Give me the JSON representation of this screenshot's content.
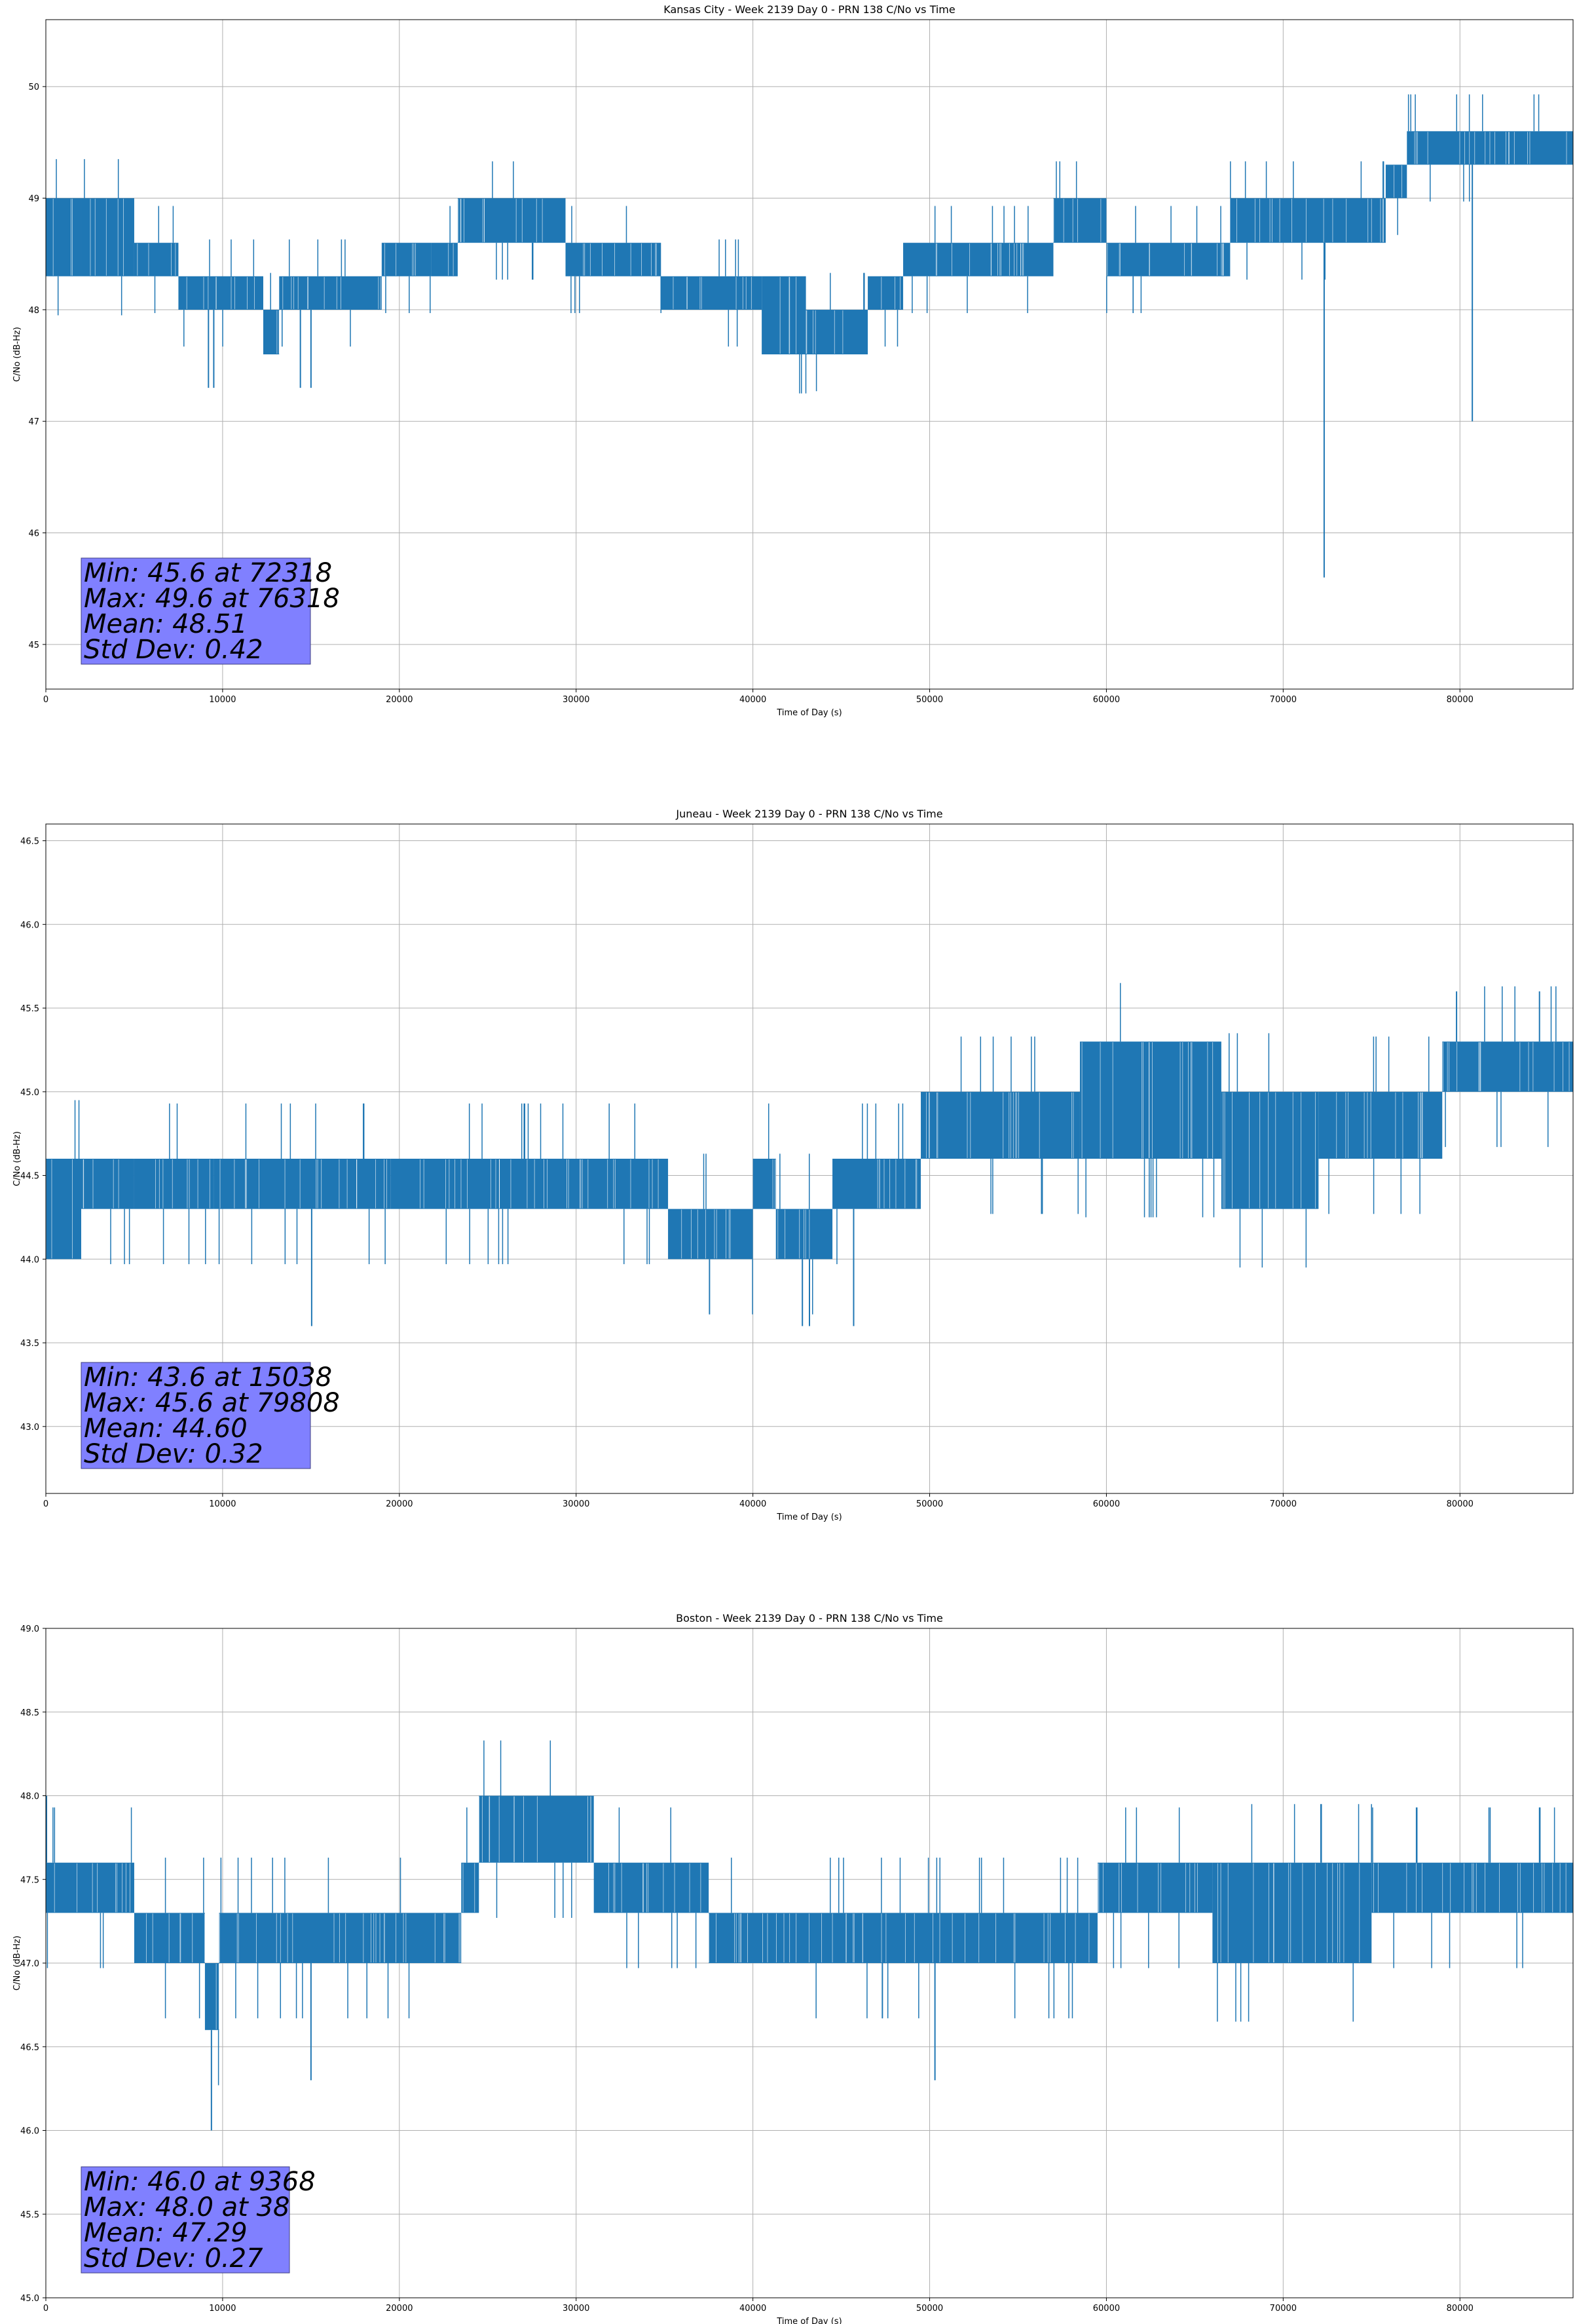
{
  "colors": {
    "line": "#1f77b4",
    "grid": "#b0b0b0",
    "stats_box": "#8080ff",
    "background": "#ffffff"
  },
  "chart_data": [
    {
      "type": "line",
      "title": "Kansas City - Week 2139 Day 0 - PRN 138 C/No vs Time",
      "xlabel": "Time of Day (s)",
      "ylabel": "C/No (dB-Hz)",
      "xlim": [
        0,
        86400
      ],
      "ylim": [
        44.6,
        50.6
      ],
      "xticks": [
        0,
        10000,
        20000,
        30000,
        40000,
        50000,
        60000,
        70000,
        80000
      ],
      "yticks": [
        45,
        46,
        47,
        48,
        49,
        50
      ],
      "grid": true,
      "stats": [
        "Min: 45.6 at 72318",
        "Max: 49.6 at 76318",
        "Mean: 48.51",
        "Std Dev: 0.42"
      ],
      "series": [
        {
          "bands": [
            {
              "x": [
                0,
                2000
              ],
              "y": [
                48.3,
                49.0
              ]
            },
            {
              "x": [
                2000,
                5000
              ],
              "y": [
                48.3,
                49.0
              ]
            },
            {
              "x": [
                5000,
                7500
              ],
              "y": [
                48.3,
                48.6
              ]
            },
            {
              "x": [
                7500,
                12300
              ],
              "y": [
                48.0,
                48.3
              ]
            },
            {
              "x": [
                12300,
                13200
              ],
              "y": [
                47.6,
                48.0
              ]
            },
            {
              "x": [
                13200,
                19000
              ],
              "y": [
                48.0,
                48.3
              ]
            },
            {
              "x": [
                19000,
                21800
              ],
              "y": [
                48.3,
                48.6
              ]
            },
            {
              "x": [
                21800,
                23300
              ],
              "y": [
                48.3,
                48.6
              ]
            },
            {
              "x": [
                23300,
                29400
              ],
              "y": [
                48.6,
                49.0
              ]
            },
            {
              "x": [
                29400,
                34800
              ],
              "y": [
                48.3,
                48.6
              ]
            },
            {
              "x": [
                34800,
                40500
              ],
              "y": [
                48.0,
                48.3
              ]
            },
            {
              "x": [
                40500,
                43000
              ],
              "y": [
                47.6,
                48.3
              ]
            },
            {
              "x": [
                43000,
                46500
              ],
              "y": [
                47.6,
                48.0
              ]
            },
            {
              "x": [
                46500,
                48500
              ],
              "y": [
                48.0,
                48.3
              ]
            },
            {
              "x": [
                48500,
                57000
              ],
              "y": [
                48.3,
                48.6
              ]
            },
            {
              "x": [
                57000,
                60000
              ],
              "y": [
                48.6,
                49.0
              ]
            },
            {
              "x": [
                60000,
                67000
              ],
              "y": [
                48.3,
                48.6
              ]
            },
            {
              "x": [
                67000,
                75800
              ],
              "y": [
                48.6,
                49.0
              ]
            },
            {
              "x": [
                75800,
                77000
              ],
              "y": [
                49.0,
                49.3
              ]
            },
            {
              "x": [
                77000,
                86400
              ],
              "y": [
                49.3,
                49.6
              ]
            }
          ],
          "dips": [
            {
              "x": 9200,
              "y": 47.3
            },
            {
              "x": 9500,
              "y": 47.3
            },
            {
              "x": 14400,
              "y": 47.3
            },
            {
              "x": 15000,
              "y": 47.3
            },
            {
              "x": 72318,
              "y": 45.6
            },
            {
              "x": 80700,
              "y": 47.0
            }
          ]
        }
      ]
    },
    {
      "type": "line",
      "title": "Juneau - Week 2139 Day 0 - PRN 138 C/No vs Time",
      "xlabel": "Time of Day (s)",
      "ylabel": "C/No (dB-Hz)",
      "xlim": [
        0,
        86400
      ],
      "ylim": [
        42.6,
        46.6
      ],
      "xticks": [
        0,
        10000,
        20000,
        30000,
        40000,
        50000,
        60000,
        70000,
        80000
      ],
      "yticks": [
        43.0,
        43.5,
        44.0,
        44.5,
        45.0,
        45.5,
        46.0,
        46.5
      ],
      "grid": true,
      "stats": [
        "Min: 43.6 at 15038",
        "Max: 45.6 at 79808",
        "Mean: 44.60",
        "Std Dev: 0.32"
      ],
      "series": [
        {
          "bands": [
            {
              "x": [
                0,
                2000
              ],
              "y": [
                44.0,
                44.6
              ]
            },
            {
              "x": [
                2000,
                5000
              ],
              "y": [
                44.3,
                44.6
              ]
            },
            {
              "x": [
                5000,
                9500
              ],
              "y": [
                44.3,
                44.6
              ]
            },
            {
              "x": [
                9500,
                19500
              ],
              "y": [
                44.3,
                44.6
              ]
            },
            {
              "x": [
                19500,
                35200
              ],
              "y": [
                44.3,
                44.6
              ]
            },
            {
              "x": [
                35200,
                40000
              ],
              "y": [
                44.0,
                44.3
              ]
            },
            {
              "x": [
                40000,
                41300
              ],
              "y": [
                44.3,
                44.6
              ]
            },
            {
              "x": [
                41300,
                44500
              ],
              "y": [
                44.0,
                44.3
              ]
            },
            {
              "x": [
                44500,
                49500
              ],
              "y": [
                44.3,
                44.6
              ]
            },
            {
              "x": [
                49500,
                58500
              ],
              "y": [
                44.6,
                45.0
              ]
            },
            {
              "x": [
                58500,
                66500
              ],
              "y": [
                44.6,
                45.3
              ]
            },
            {
              "x": [
                66500,
                72000
              ],
              "y": [
                44.3,
                45.0
              ]
            },
            {
              "x": [
                72000,
                79000
              ],
              "y": [
                44.6,
                45.0
              ]
            },
            {
              "x": [
                79000,
                86400
              ],
              "y": [
                45.0,
                45.3
              ]
            }
          ],
          "dips": [
            {
              "x": 15038,
              "y": 43.6
            },
            {
              "x": 42800,
              "y": 43.6
            },
            {
              "x": 43200,
              "y": 43.6
            },
            {
              "x": 45700,
              "y": 43.6
            },
            {
              "x": 79808,
              "y": 45.6
            },
            {
              "x": 84500,
              "y": 45.6
            }
          ]
        }
      ]
    },
    {
      "type": "line",
      "title": "Boston - Week 2139 Day 0 - PRN 138 C/No vs Time",
      "xlabel": "Time of Day (s)",
      "ylabel": "C/No (dB-Hz)",
      "xlim": [
        0,
        86400
      ],
      "ylim": [
        45.0,
        49.0
      ],
      "xticks": [
        0,
        10000,
        20000,
        30000,
        40000,
        50000,
        60000,
        70000,
        80000
      ],
      "yticks": [
        45.0,
        45.5,
        46.0,
        46.5,
        47.0,
        47.5,
        48.0,
        48.5,
        49.0
      ],
      "grid": true,
      "stats": [
        "Min: 46.0 at 9368",
        "Max: 48.0 at 38",
        "Mean: 47.29",
        "Std Dev: 0.27"
      ],
      "series": [
        {
          "bands": [
            {
              "x": [
                0,
                5000
              ],
              "y": [
                47.3,
                47.6
              ]
            },
            {
              "x": [
                5000,
                9000
              ],
              "y": [
                47.0,
                47.3
              ]
            },
            {
              "x": [
                9000,
                9800
              ],
              "y": [
                46.6,
                47.0
              ]
            },
            {
              "x": [
                9800,
                23500
              ],
              "y": [
                47.0,
                47.3
              ]
            },
            {
              "x": [
                23500,
                24500
              ],
              "y": [
                47.3,
                47.6
              ]
            },
            {
              "x": [
                24500,
                31000
              ],
              "y": [
                47.6,
                48.0
              ]
            },
            {
              "x": [
                31000,
                37500
              ],
              "y": [
                47.3,
                47.6
              ]
            },
            {
              "x": [
                37500,
                59500
              ],
              "y": [
                47.0,
                47.3
              ]
            },
            {
              "x": [
                59500,
                66000
              ],
              "y": [
                47.3,
                47.6
              ]
            },
            {
              "x": [
                66000,
                75000
              ],
              "y": [
                47.0,
                47.6
              ]
            },
            {
              "x": [
                75000,
                86400
              ],
              "y": [
                47.3,
                47.6
              ]
            }
          ],
          "dips": [
            {
              "x": 38,
              "y": 48.0
            },
            {
              "x": 9368,
              "y": 46.0
            },
            {
              "x": 15000,
              "y": 46.3
            },
            {
              "x": 50300,
              "y": 46.3
            }
          ]
        }
      ]
    }
  ]
}
